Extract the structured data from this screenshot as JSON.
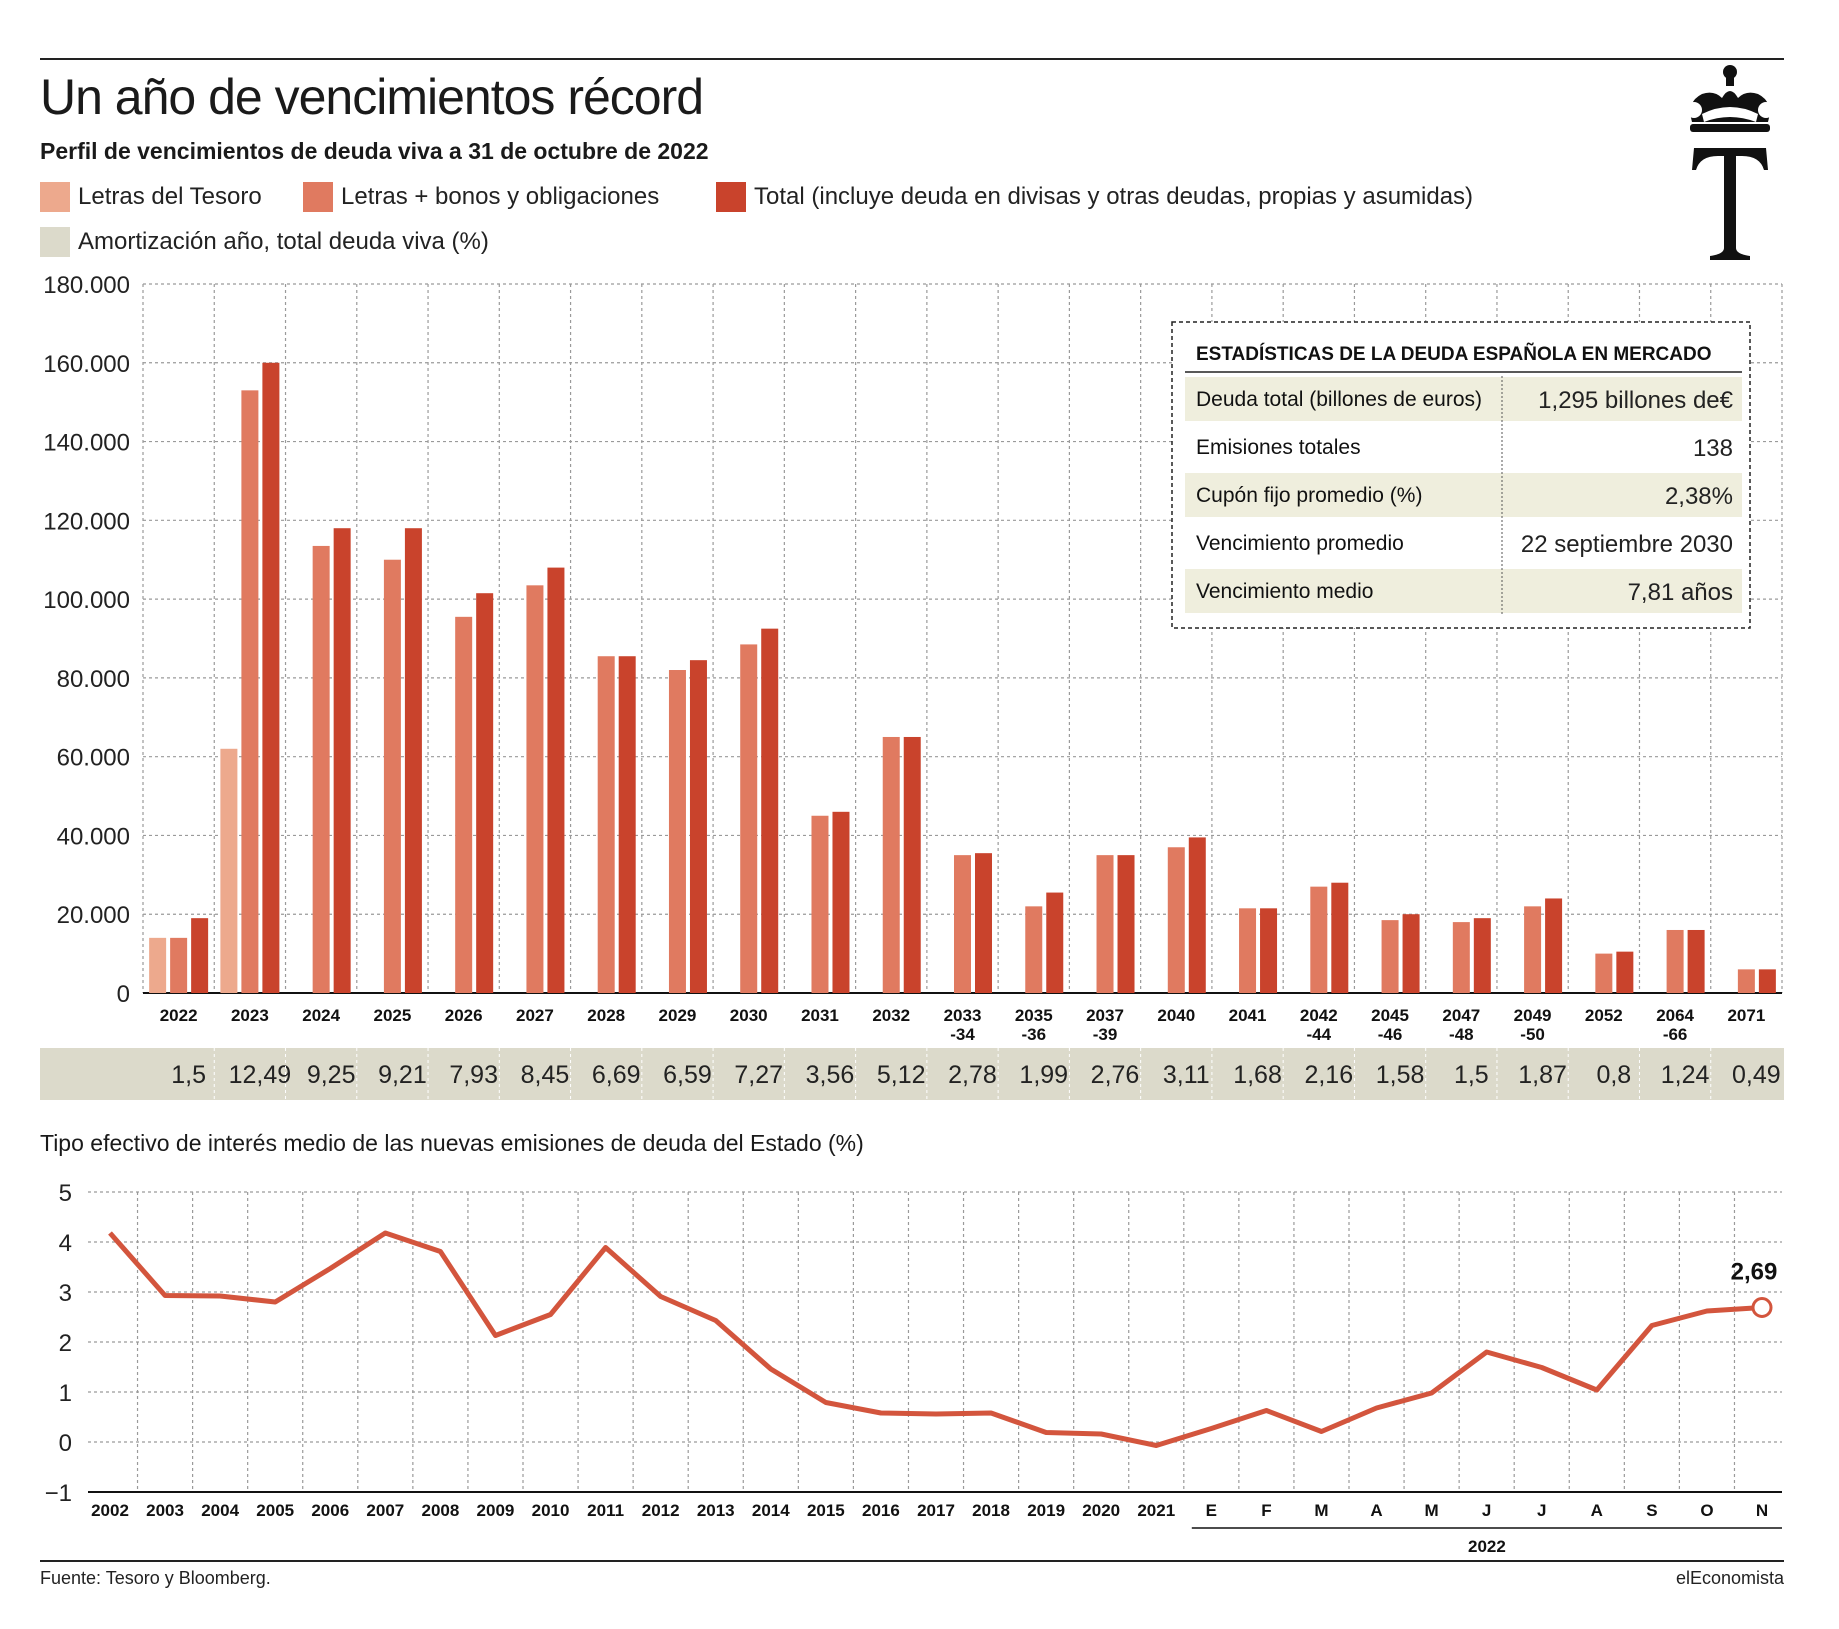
{
  "header": {
    "title": "Un año de vencimientos récord",
    "subtitle": "Perfil de vencimientos de deuda viva a 31 de octubre de 2022"
  },
  "legend": [
    {
      "label": "Letras del Tesoro",
      "color": "#eda98d"
    },
    {
      "label": "Letras  + bonos y obligaciones",
      "color": "#e07a60"
    },
    {
      "label": "Total (incluye deuda en divisas y otras deudas, propias y asumidas)",
      "color": "#c9432c"
    },
    {
      "label": "Amortización año, total deuda viva (%)",
      "color": "#dcdacb"
    }
  ],
  "logo": {
    "letter": "T",
    "icon": "crown-icon"
  },
  "stats": {
    "title": "ESTADÍSTICAS DE LA DEUDA ESPAÑOLA EN MERCADO",
    "rows": [
      {
        "label": "Deuda total (billones de euros)",
        "value": "1,295 billones de€",
        "shaded": true
      },
      {
        "label": "Emisiones totales",
        "value": "138",
        "shaded": false
      },
      {
        "label": "Cupón fijo promedio (%)",
        "value": "2,38%",
        "shaded": true
      },
      {
        "label": "Vencimiento promedio",
        "value": "22 septiembre 2030",
        "shaded": false
      },
      {
        "label": "Vencimiento medio",
        "value": "7,81 años",
        "shaded": true
      }
    ]
  },
  "chart_data": [
    {
      "type": "bar",
      "categories": [
        "2022",
        "2023",
        "2024",
        "2025",
        "2026",
        "2027",
        "2028",
        "2029",
        "2030",
        "2031",
        "2032",
        "2033\n-34",
        "2035\n-36",
        "2037\n-39",
        "2040",
        "2041",
        "2042\n-44",
        "2045\n-46",
        "2047\n-48",
        "2049\n-50",
        "2052",
        "2064\n-66",
        "2071"
      ],
      "series": [
        {
          "name": "Letras del Tesoro",
          "values": [
            14000,
            62000,
            null,
            null,
            null,
            null,
            null,
            null,
            null,
            null,
            null,
            null,
            null,
            null,
            null,
            null,
            null,
            null,
            null,
            null,
            null,
            null,
            null
          ]
        },
        {
          "name": "Letras  + bonos y obligaciones",
          "values": [
            14000,
            153000,
            113500,
            110000,
            95500,
            103500,
            85500,
            82000,
            88500,
            45000,
            65000,
            35000,
            22000,
            35000,
            37000,
            21500,
            27000,
            18500,
            18000,
            22000,
            10000,
            16000,
            6000
          ]
        },
        {
          "name": "Total (incluye deuda en divisas y otras deudas, propias y asumidas)",
          "values": [
            19000,
            160000,
            118000,
            118000,
            101500,
            108000,
            85500,
            84500,
            92500,
            46000,
            65000,
            35500,
            25500,
            35000,
            39500,
            21500,
            28000,
            20000,
            19000,
            24000,
            10500,
            16000,
            6000
          ]
        }
      ],
      "y_ticks": [
        "0",
        "20.000",
        "40.000",
        "60.000",
        "80.000",
        "100.000",
        "120.000",
        "140.000",
        "160.000",
        "180.000"
      ],
      "ylim": [
        0,
        180000
      ],
      "grid": true,
      "amortization_label": "Amortización año, total deuda viva (%)",
      "amortization": [
        "1,5",
        "12,49",
        "9,25",
        "9,21",
        "7,93",
        "8,45",
        "6,69",
        "6,59",
        "7,27",
        "3,56",
        "5,12",
        "2,78",
        "1,99",
        "2,76",
        "3,11",
        "1,68",
        "2,16",
        "1,58",
        "1,5",
        "1,87",
        "0,8",
        "1,24",
        "0,49"
      ]
    },
    {
      "type": "line",
      "title": "Tipo efectivo de interés medio de las nuevas emisiones de deuda del Estado (%)",
      "x": [
        "2002",
        "2003",
        "2004",
        "2005",
        "2006",
        "2007",
        "2008",
        "2009",
        "2010",
        "2011",
        "2012",
        "2013",
        "2014",
        "2015",
        "2016",
        "2017",
        "2018",
        "2019",
        "2020",
        "2021",
        "E",
        "F",
        "M",
        "A",
        "M",
        "J",
        "J",
        "A",
        "S",
        "O",
        "N"
      ],
      "x_group_label": "2022",
      "series": [
        {
          "values": [
            4.18,
            2.93,
            2.92,
            2.8,
            3.47,
            4.18,
            3.81,
            2.13,
            2.55,
            3.89,
            2.91,
            2.43,
            1.46,
            0.79,
            0.58,
            0.56,
            0.58,
            0.19,
            0.16,
            -0.07,
            0.27,
            0.63,
            0.21,
            0.68,
            0.98,
            1.8,
            1.49,
            1.04,
            2.33,
            2.62,
            2.69
          ]
        }
      ],
      "end_label": "2,69",
      "y_ticks": [
        "−1",
        "0",
        "1",
        "2",
        "3",
        "4",
        "5"
      ],
      "ylim": [
        -1,
        5
      ],
      "grid": true,
      "color": "#d3553d"
    }
  ],
  "footer": {
    "source": "Fuente: Tesoro y Bloomberg.",
    "brand": "elEconomista"
  }
}
